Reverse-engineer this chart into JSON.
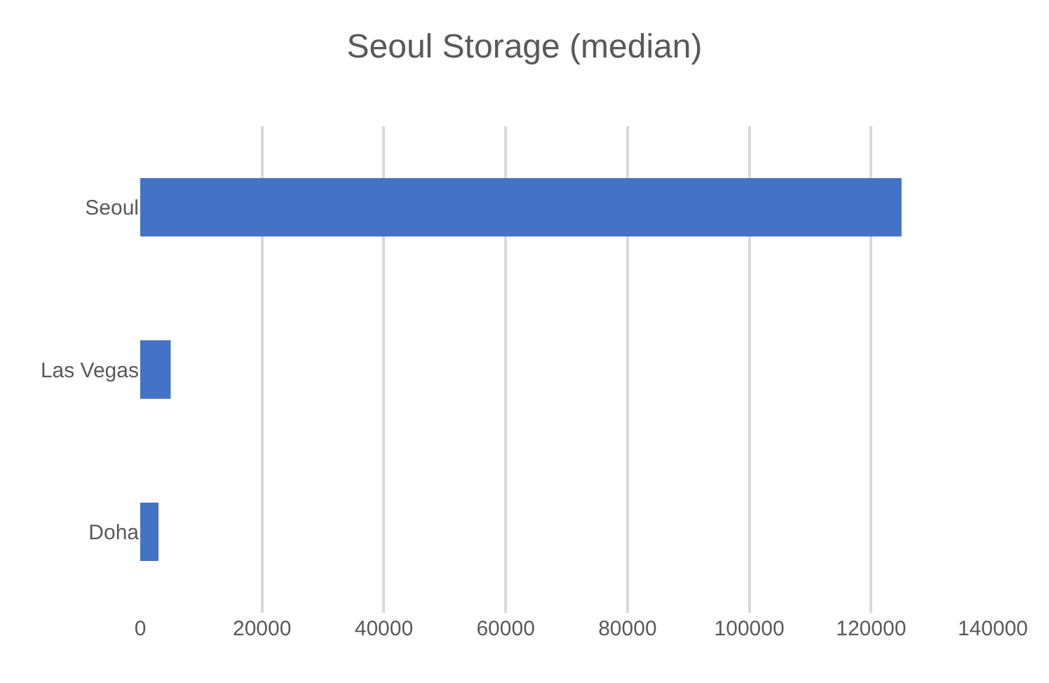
{
  "chart_data": {
    "type": "bar",
    "title": "Seoul Storage (median)",
    "orientation": "horizontal",
    "categories": [
      "Seoul",
      "Las Vegas",
      "Doha"
    ],
    "values": [
      125000,
      5000,
      3000
    ],
    "color": "#4472c4",
    "xlim": [
      0,
      140000
    ],
    "xticks": [
      0,
      20000,
      40000,
      60000,
      80000,
      100000,
      120000,
      140000
    ],
    "grid": "x",
    "legend": false
  }
}
